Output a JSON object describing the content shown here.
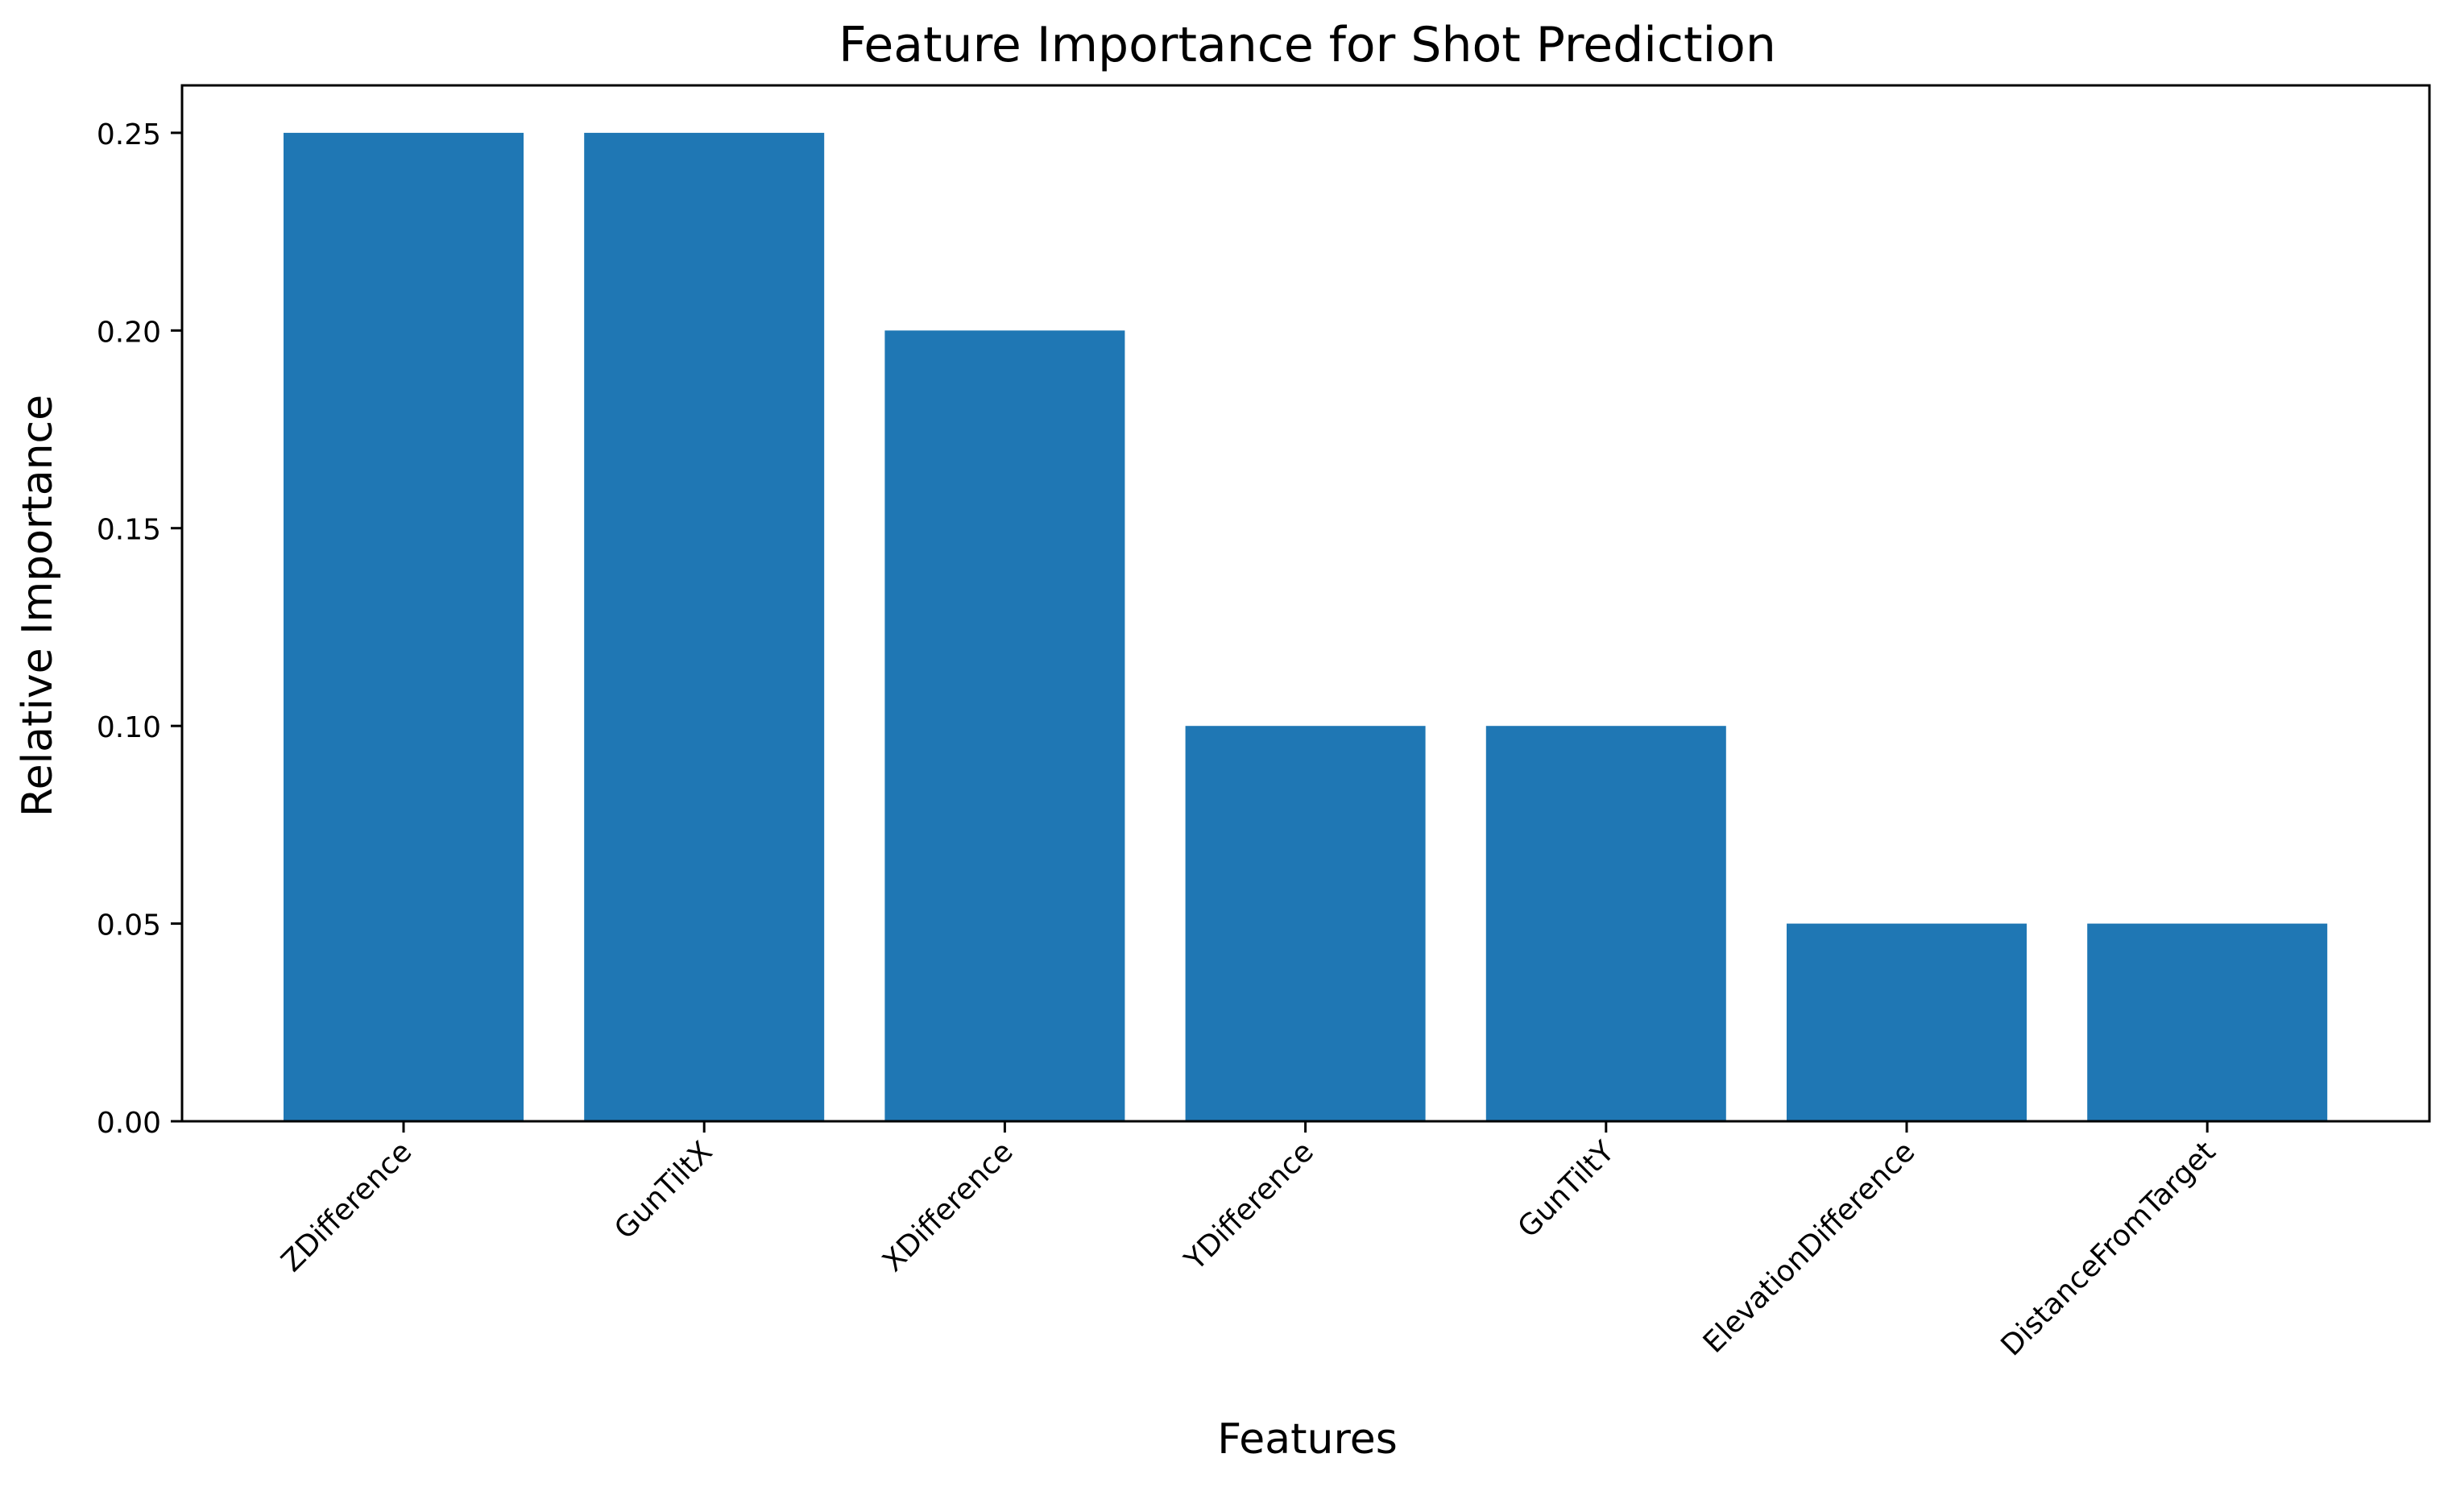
{
  "chart_data": {
    "type": "bar",
    "title": "Feature Importance for Shot Prediction",
    "xlabel": "Features",
    "ylabel": "Relative Importance",
    "categories": [
      "ZDifference",
      "GunTiltX",
      "XDifference",
      "YDifference",
      "GunTiltY",
      "ElevationDifference",
      "DistanceFromTarget"
    ],
    "values": [
      0.25,
      0.25,
      0.2,
      0.1,
      0.1,
      0.05,
      0.05
    ],
    "ylim": [
      0,
      0.262
    ],
    "yticks": [
      0.0,
      0.05,
      0.1,
      0.15,
      0.2,
      0.25
    ],
    "ytick_labels": [
      "0.00",
      "0.05",
      "0.10",
      "0.15",
      "0.20",
      "0.25"
    ],
    "bar_color": "#1f77b4",
    "grid": false,
    "legend": "none"
  }
}
